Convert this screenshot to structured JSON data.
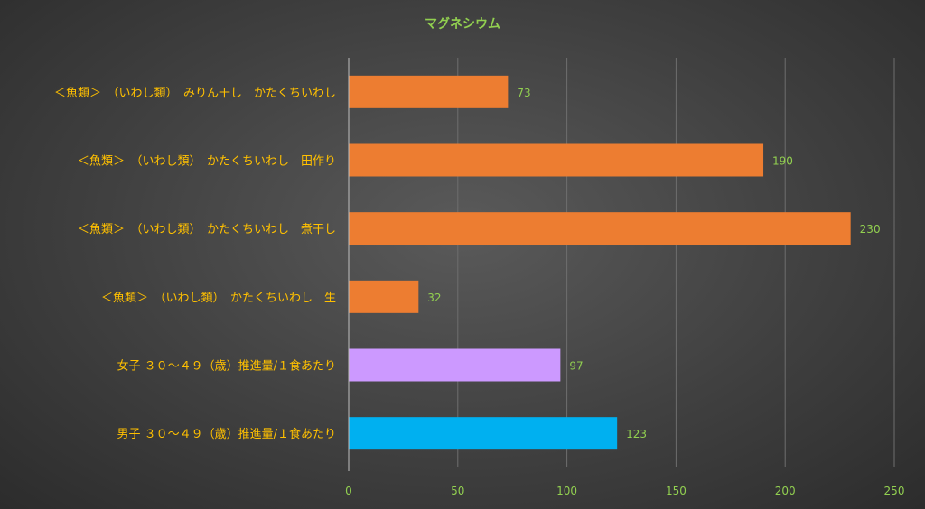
{
  "chart_data": {
    "type": "bar",
    "orientation": "horizontal",
    "title": "マグネシウム",
    "categories": [
      "＜魚類＞　（いわし類）　みりん干し　かたくちいわし",
      "＜魚類＞　（いわし類）　かたくちいわし　田作り",
      "＜魚類＞　（いわし類）　かたくちいわし　煮干し",
      "＜魚類＞　（いわし類）　かたくちいわし　生",
      "女子 ３０～４９（歳）推進量/１食あたり",
      "男子 ３０～４９（歳）推進量/１食あたり"
    ],
    "values": [
      73,
      190,
      230,
      32,
      97,
      123
    ],
    "bar_colors": [
      "#ed7d31",
      "#ed7d31",
      "#ed7d31",
      "#ed7d31",
      "#cc99ff",
      "#00b0f0"
    ],
    "xlim": [
      0,
      250
    ],
    "xticks": [
      0,
      50,
      100,
      150,
      200,
      250
    ],
    "xlabel": "",
    "ylabel": "",
    "grid": true,
    "data_labels": true,
    "legend": "none"
  }
}
